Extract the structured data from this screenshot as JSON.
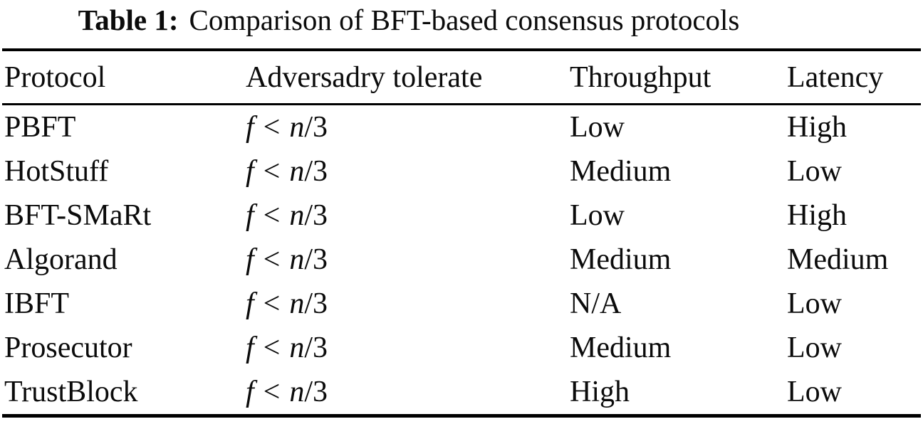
{
  "title": {
    "label": "Table 1:",
    "text": "Comparison of BFT-based consensus protocols"
  },
  "table": {
    "columns": [
      "Protocol",
      "Adversadry tolerate",
      "Throughput",
      "Latency"
    ],
    "rows": [
      {
        "protocol": "PBFT",
        "tolerate": {
          "f": "f",
          "op": "<",
          "n": "n",
          "slash3": "/3"
        },
        "throughput": "Low",
        "latency": "High"
      },
      {
        "protocol": "HotStuff",
        "tolerate": {
          "f": "f",
          "op": "<",
          "n": "n",
          "slash3": "/3"
        },
        "throughput": "Medium",
        "latency": "Low"
      },
      {
        "protocol": "BFT-SMaRt",
        "tolerate": {
          "f": "f",
          "op": "<",
          "n": "n",
          "slash3": "/3"
        },
        "throughput": "Low",
        "latency": "High"
      },
      {
        "protocol": "Algorand",
        "tolerate": {
          "f": "f",
          "op": "<",
          "n": "n",
          "slash3": "/3"
        },
        "throughput": "Medium",
        "latency": "Medium"
      },
      {
        "protocol": "IBFT",
        "tolerate": {
          "f": "f",
          "op": "<",
          "n": "n",
          "slash3": "/3"
        },
        "throughput": "N/A",
        "latency": "Low"
      },
      {
        "protocol": "Prosecutor",
        "tolerate": {
          "f": "f",
          "op": "<",
          "n": "n",
          "slash3": "/3"
        },
        "throughput": "Medium",
        "latency": "Low"
      },
      {
        "protocol": "TrustBlock",
        "tolerate": {
          "f": "f",
          "op": "<",
          "n": "n",
          "slash3": "/3"
        },
        "throughput": "High",
        "latency": "Low"
      }
    ]
  },
  "colors": {
    "text": "#0b0b0b",
    "rule": "#000000",
    "background": "#ffffff"
  }
}
